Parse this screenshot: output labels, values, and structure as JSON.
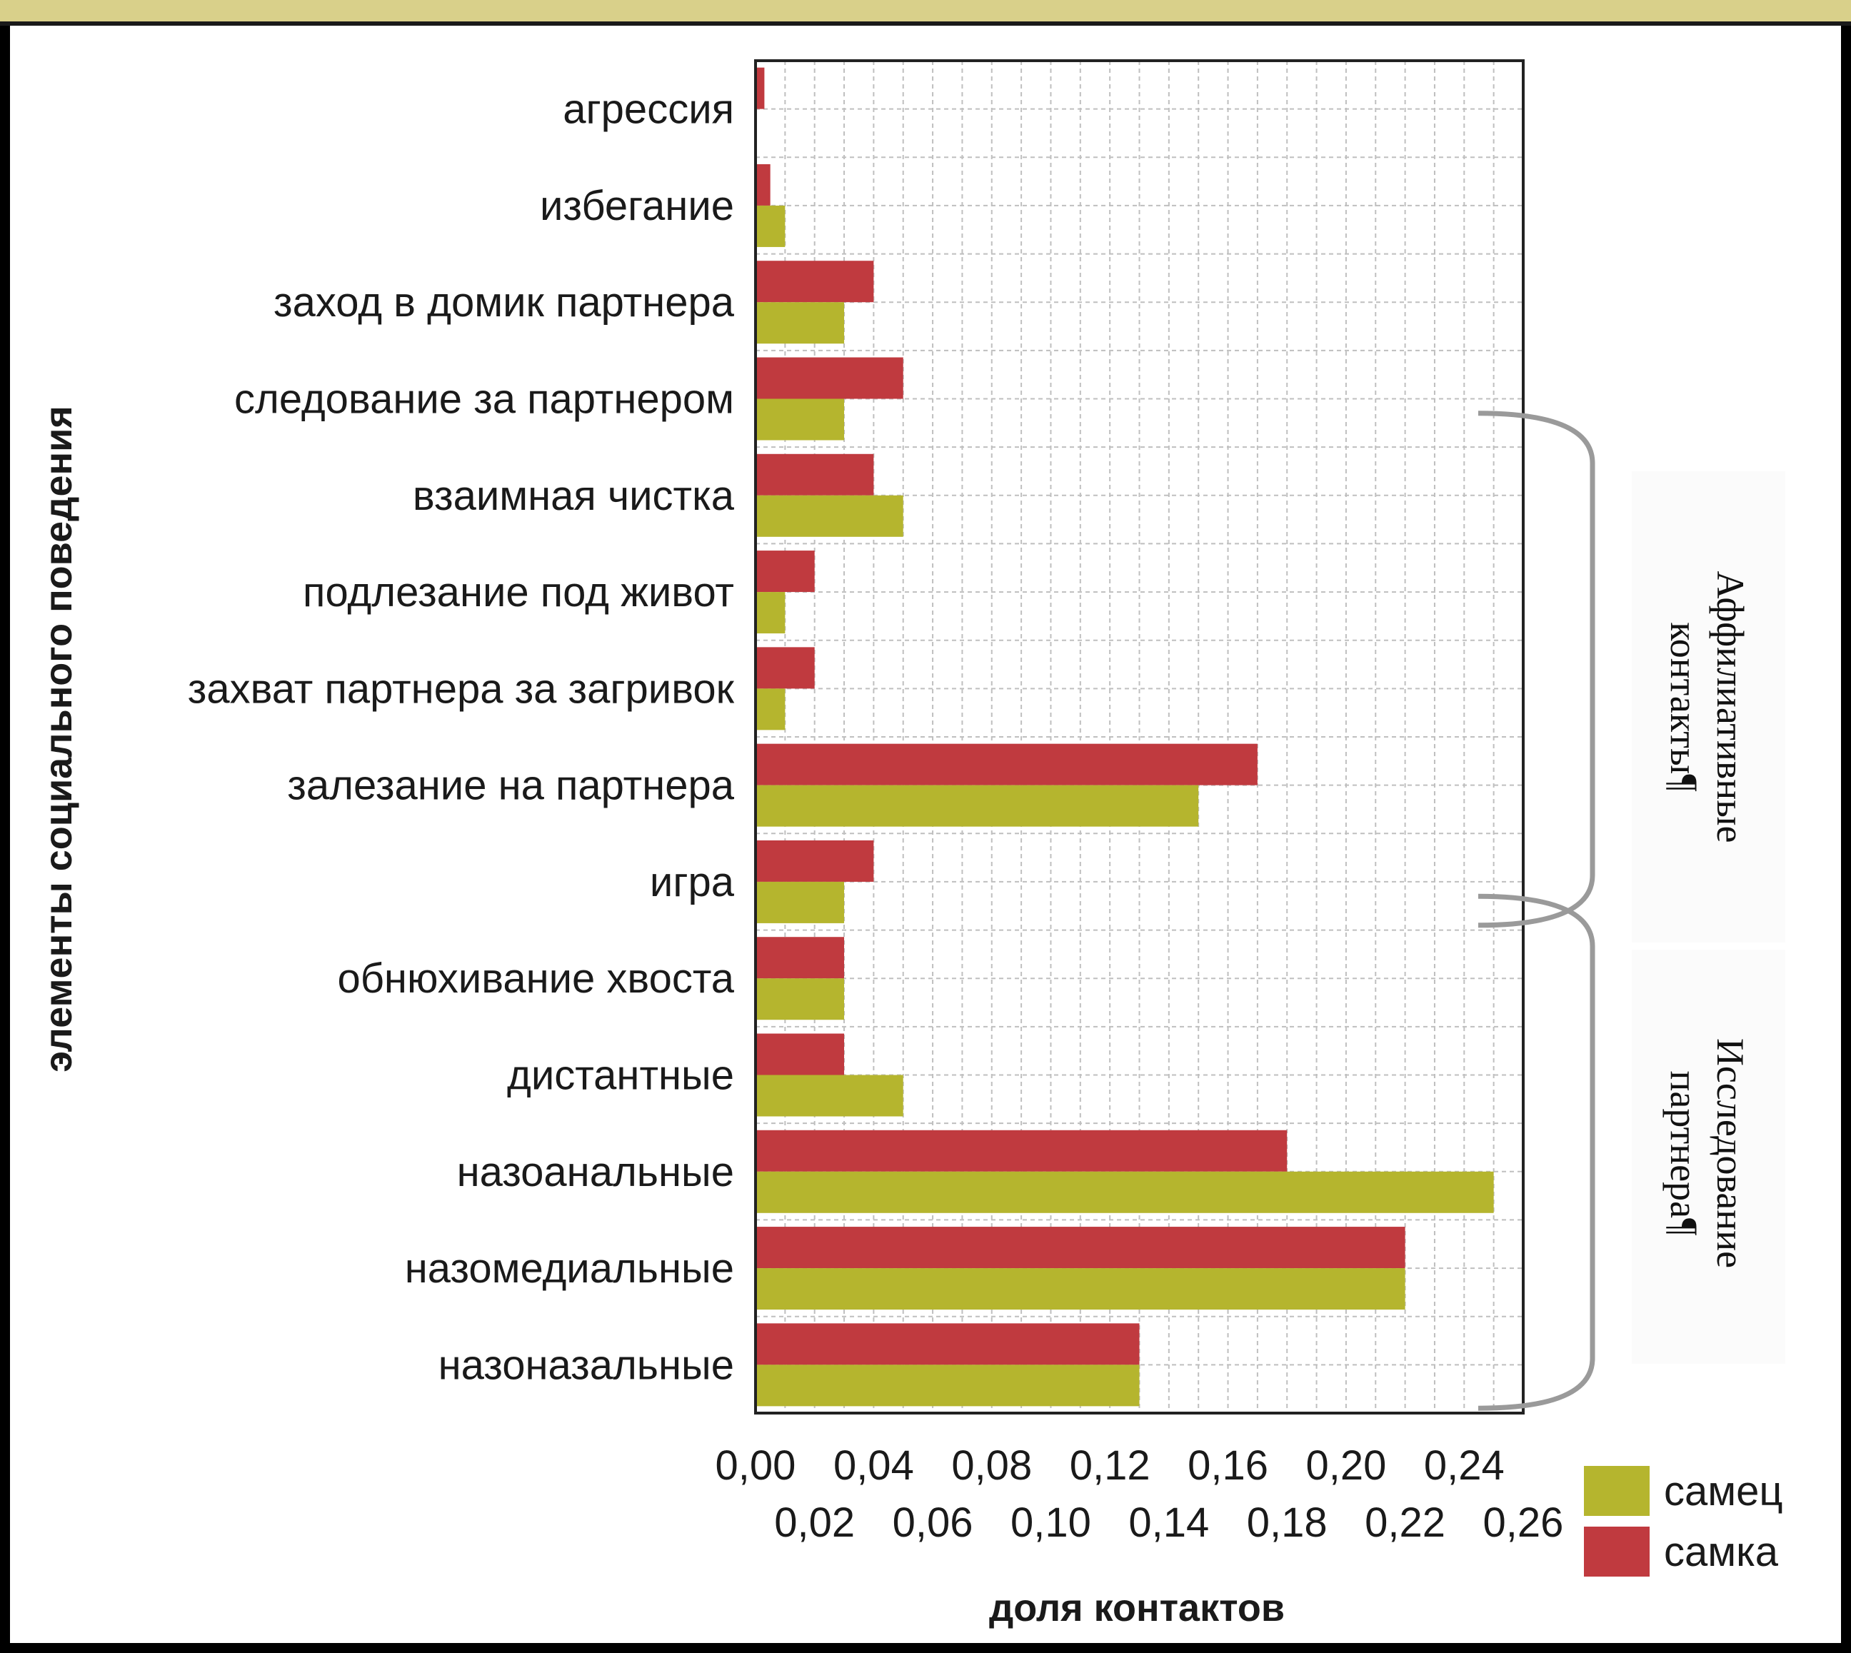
{
  "colors": {
    "male": "#b5b52e",
    "female": "#c03a3f",
    "grid": "#bfbfbf",
    "bracket": "#9a9a9a",
    "band": "#d9d08a"
  },
  "chart_data": {
    "type": "bar",
    "orientation": "horizontal",
    "categories": [
      "агрессия",
      "избегание",
      "заход в домик партнера",
      "следование за партнером",
      "взаимная чистка",
      "подлезание под живот",
      "захват партнера за загривок",
      "залезание на партнера",
      "игра",
      "обнюхивание хвоста",
      "дистантные",
      "назоанальные",
      "назомедиальные",
      "назоназальные"
    ],
    "series": [
      {
        "name": "самка",
        "color": "#c03a3f",
        "values": [
          0.003,
          0.005,
          0.04,
          0.05,
          0.04,
          0.02,
          0.02,
          0.17,
          0.04,
          0.03,
          0.03,
          0.18,
          0.22,
          0.13
        ]
      },
      {
        "name": "самец",
        "color": "#b5b52e",
        "values": [
          0.0,
          0.01,
          0.03,
          0.03,
          0.05,
          0.01,
          0.01,
          0.15,
          0.03,
          0.03,
          0.05,
          0.25,
          0.22,
          0.13
        ]
      }
    ],
    "xlabel": "доля контактов",
    "ylabel": "элементы социального поведения",
    "xlim": [
      0,
      0.26
    ],
    "xticks_top_row": [
      "0,00",
      "0,04",
      "0,08",
      "0,12",
      "0,16",
      "0,20",
      "0,24"
    ],
    "xticks_bottom_row": [
      "0,02",
      "0,06",
      "0,10",
      "0,14",
      "0,18",
      "0,22",
      "0,26"
    ],
    "grid": true,
    "legend": {
      "placement": "bottom-right",
      "entries": [
        "самец",
        "самка"
      ]
    },
    "annotations": [
      {
        "text_lines": [
          "Аффилиативные",
          "контакты¶"
        ],
        "categories_from": 4,
        "categories_to": 8
      },
      {
        "text_lines": [
          "Исследование",
          "партнера¶"
        ],
        "categories_from": 9,
        "categories_to": 13
      }
    ]
  }
}
